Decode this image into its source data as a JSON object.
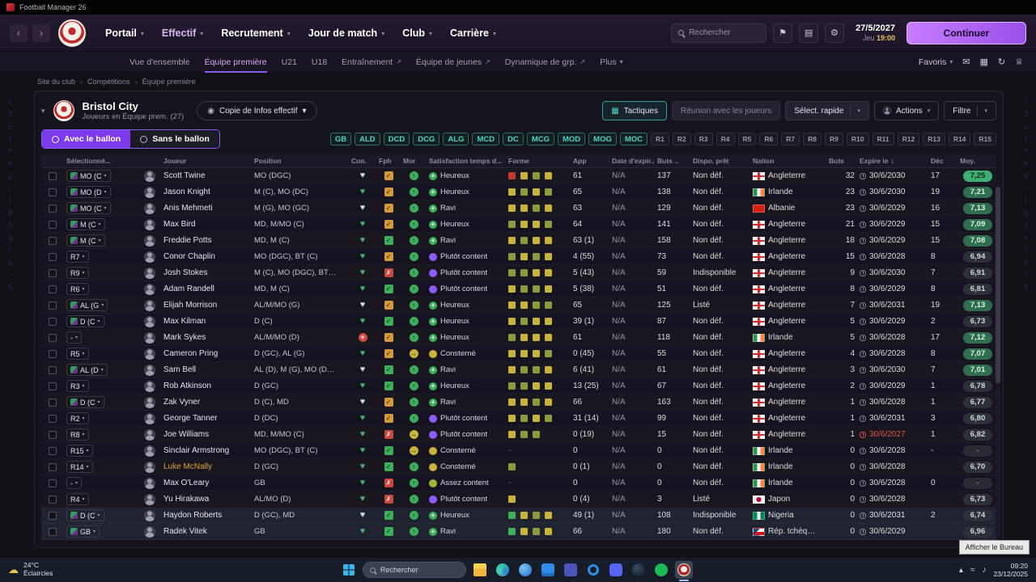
{
  "window": {
    "title": "Football Manager 26"
  },
  "navbar": {
    "menus": [
      "Portail",
      "Effectif",
      "Recrutement",
      "Jour de match",
      "Club",
      "Carrière"
    ],
    "active_menu": "Effectif",
    "search_placeholder": "Rechercher",
    "date": "27/5/2027",
    "day": "Jeu",
    "time": "19:00",
    "continue_label": "Continuer"
  },
  "subnav": {
    "items": [
      {
        "label": "Vue d'ensemble"
      },
      {
        "label": "Équipe première",
        "active": true
      },
      {
        "label": "U21"
      },
      {
        "label": "U18"
      },
      {
        "label": "Entraînement",
        "ext": true
      },
      {
        "label": "Équipe de jeunes",
        "ext": true
      },
      {
        "label": "Dynamique de grp.",
        "ext": true
      },
      {
        "label": "Plus",
        "caret": true
      }
    ],
    "favoris": "Favoris"
  },
  "breadcrumb": [
    "Site du club",
    "Compétitions",
    "Équipe première"
  ],
  "header": {
    "club": "Bristol City",
    "subtitle": "Joueurs en Équipe prem. (27)",
    "view_dropdown": "Copie de Infos effectif",
    "actions": {
      "tactics": "Tactiques",
      "meeting": "Réunion avec les joueurs",
      "quick_select": "Sélect. rapide",
      "actions": "Actions",
      "filter": "Filtre"
    }
  },
  "filters": {
    "ball_on": "Avec le ballon",
    "ball_off": "Sans le ballon",
    "position_chips": [
      "GB",
      "ALD",
      "DCD",
      "DCG",
      "ALG",
      "MCD",
      "DC",
      "MCG",
      "MOD",
      "MOG",
      "MOC"
    ],
    "slot_chips": [
      "R1",
      "R2",
      "R3",
      "R4",
      "R5",
      "R6",
      "R7",
      "R8",
      "R9",
      "R10",
      "R11",
      "R12",
      "R13",
      "R14",
      "R15"
    ]
  },
  "table": {
    "columns": [
      {
        "l": ""
      },
      {
        "l": "Sélectionné..."
      },
      {
        "l": ""
      },
      {
        "l": "Joueur"
      },
      {
        "l": "Position"
      },
      {
        "l": "Con."
      },
      {
        "l": "Fph"
      },
      {
        "l": "Mor"
      },
      {
        "l": "Satisfaction temps d..."
      },
      {
        "l": "Forme"
      },
      {
        "l": "App"
      },
      {
        "l": "Date d'expir..."
      },
      {
        "l": "Buts .."
      },
      {
        "l": "Dispo. prêt"
      },
      {
        "l": "Nation"
      },
      {
        "l": "Buts"
      },
      {
        "l": "Expire le",
        "sort": true
      },
      {
        "l": "Déc"
      },
      {
        "l": "Moy."
      }
    ],
    "rows": [
      {
        "sel": "MO (C",
        "badge": true,
        "name": "Scott Twine",
        "pos": "MO (DGC)",
        "con": "pale",
        "fph": "or",
        "mor": "g",
        "sat": "Heureux",
        "satCls": "sat-green",
        "forme": [
          "r",
          "y",
          "o",
          "y"
        ],
        "app": "61",
        "dexp": "N/A",
        "buts2": "137",
        "dispo": "Non déf.",
        "nation": "Angleterre",
        "flag": "eng",
        "buts": "32",
        "expire": "30/6/2030",
        "dec": "17",
        "moy": "7,25",
        "moyCls": "moy-b3"
      },
      {
        "sel": "MO (D",
        "badge": true,
        "name": "Jason Knight",
        "pos": "M (C), MO (DC)",
        "con": "g",
        "fph": "or",
        "mor": "g",
        "sat": "Heureux",
        "satCls": "sat-green",
        "forme": [
          "y",
          "o",
          "y",
          "o"
        ],
        "app": "65",
        "dexp": "N/A",
        "buts2": "138",
        "dispo": "Non déf.",
        "nation": "Irlande",
        "flag": "irl",
        "buts": "23",
        "expire": "30/6/2030",
        "dec": "19",
        "moy": "7,21",
        "moyCls": "moy-b2"
      },
      {
        "sel": "MO (C",
        "badge": true,
        "name": "Anis Mehmeti",
        "pos": "M (G), MO (GC)",
        "con": "pale",
        "fph": "or",
        "mor": "g",
        "sat": "Ravi",
        "satCls": "sat-green",
        "forme": [
          "y",
          "y",
          "o",
          "y"
        ],
        "app": "63",
        "dexp": "N/A",
        "buts2": "129",
        "dispo": "Non déf.",
        "nation": "Albanie",
        "flag": "alb",
        "buts": "23",
        "expire": "30/6/2029",
        "dec": "16",
        "moy": "7,13",
        "moyCls": "moy-b2"
      },
      {
        "sel": "M (C",
        "badge": true,
        "name": "Max Bird",
        "pos": "MD, M/MO (C)",
        "con": "g",
        "fph": "or",
        "mor": "g",
        "sat": "Heureux",
        "satCls": "sat-green",
        "forme": [
          "o",
          "y",
          "y",
          "o"
        ],
        "app": "64",
        "dexp": "N/A",
        "buts2": "141",
        "dispo": "Non déf.",
        "nation": "Angleterre",
        "flag": "eng",
        "buts": "21",
        "expire": "30/6/2029",
        "dec": "15",
        "moy": "7,09",
        "moyCls": "moy-b2"
      },
      {
        "sel": "M (C",
        "badge": true,
        "name": "Freddie Potts",
        "pos": "MD, M (C)",
        "con": "g",
        "fph": "gr",
        "mor": "g",
        "sat": "Ravi",
        "satCls": "sat-green",
        "forme": [
          "y",
          "o",
          "y",
          "y"
        ],
        "app": "63 (1)",
        "dexp": "N/A",
        "buts2": "158",
        "dispo": "Non déf.",
        "nation": "Angleterre",
        "flag": "eng",
        "buts": "18",
        "expire": "30/6/2029",
        "dec": "15",
        "moy": "7,08",
        "moyCls": "moy-b2"
      },
      {
        "sel": "R7",
        "badge": false,
        "name": "Conor Chaplin",
        "pos": "MO (DGC), BT (C)",
        "con": "g",
        "fph": "or",
        "mor": "g",
        "sat": "Plutôt content",
        "satCls": "sat-purple",
        "forme": [
          "o",
          "y",
          "o",
          "y"
        ],
        "app": "4 (55)",
        "dexp": "N/A",
        "buts2": "73",
        "dispo": "Non déf.",
        "nation": "Angleterre",
        "flag": "eng",
        "buts": "15",
        "expire": "30/6/2028",
        "dec": "8",
        "moy": "6,94",
        "moyCls": "moy-b1"
      },
      {
        "sel": "R9",
        "badge": false,
        "name": "Josh Stokes",
        "pos": "M (C), MO (DGC), BT…",
        "con": "g",
        "fph": "rd",
        "mor": "g",
        "sat": "Plutôt content",
        "satCls": "sat-purple",
        "forme": [
          "o",
          "o",
          "y",
          "y"
        ],
        "app": "5 (43)",
        "dexp": "N/A",
        "buts2": "59",
        "dispo": "Indisponible",
        "nation": "Angleterre",
        "flag": "eng",
        "buts": "9",
        "expire": "30/6/2030",
        "dec": "7",
        "moy": "6,91",
        "moyCls": "moy-b1"
      },
      {
        "sel": "R6",
        "badge": false,
        "name": "Adam Randell",
        "pos": "MD, M (C)",
        "con": "g",
        "fph": "gr",
        "mor": "g",
        "sat": "Plutôt content",
        "satCls": "sat-purple",
        "forme": [
          "y",
          "o",
          "o",
          "y"
        ],
        "app": "5 (38)",
        "dexp": "N/A",
        "buts2": "51",
        "dispo": "Non déf.",
        "nation": "Angleterre",
        "flag": "eng",
        "buts": "8",
        "expire": "30/6/2029",
        "dec": "8",
        "moy": "6,81",
        "moyCls": "moy-b1"
      },
      {
        "sel": "AL (G",
        "badge": true,
        "name": "Elijah Morrison",
        "pos": "AL/M/MO (G)",
        "con": "pale",
        "fph": "or",
        "mor": "g",
        "sat": "Heureux",
        "satCls": "sat-green",
        "forme": [
          "y",
          "y",
          "o",
          "o"
        ],
        "app": "65",
        "dexp": "N/A",
        "buts2": "125",
        "dispo": "Listé",
        "nation": "Angleterre",
        "flag": "eng",
        "buts": "7",
        "expire": "30/6/2031",
        "dec": "19",
        "moy": "7,13",
        "moyCls": "moy-b2"
      },
      {
        "sel": "D (C",
        "badge": true,
        "name": "Max Kilman",
        "pos": "D (C)",
        "con": "g",
        "fph": "gr",
        "mor": "g",
        "sat": "Heureux",
        "satCls": "sat-green",
        "forme": [
          "y",
          "o",
          "y",
          "y"
        ],
        "app": "39 (1)",
        "dexp": "N/A",
        "buts2": "87",
        "dispo": "Non déf.",
        "nation": "Angleterre",
        "flag": "eng",
        "buts": "5",
        "expire": "30/6/2029",
        "dec": "2",
        "moy": "6,73",
        "moyCls": "moy-b1"
      },
      {
        "sel": "-",
        "badge": false,
        "name": "Mark Sykes",
        "pos": "AL/M/MO (D)",
        "con": "inj",
        "fph": "or",
        "mor": "g",
        "sat": "Heureux",
        "satCls": "sat-green",
        "forme": [
          "o",
          "y",
          "y",
          "y"
        ],
        "app": "61",
        "dexp": "N/A",
        "buts2": "118",
        "dispo": "Non déf.",
        "nation": "Irlande",
        "flag": "irl",
        "buts": "5",
        "expire": "30/6/2028",
        "dec": "17",
        "moy": "7,12",
        "moyCls": "moy-b2"
      },
      {
        "sel": "R5",
        "badge": false,
        "name": "Cameron Pring",
        "pos": "D (GC), AL (G)",
        "con": "g",
        "fph": "or",
        "mor": "y",
        "sat": "Consterné",
        "satCls": "sat-yellow",
        "forme": [
          "y",
          "y",
          "y",
          "o"
        ],
        "app": "0 (45)",
        "dexp": "N/A",
        "buts2": "55",
        "dispo": "Non déf.",
        "nation": "Angleterre",
        "flag": "eng",
        "buts": "4",
        "expire": "30/6/2028",
        "dec": "8",
        "moy": "7,07",
        "moyCls": "moy-b2"
      },
      {
        "sel": "AL (D",
        "badge": true,
        "name": "Sam Bell",
        "pos": "AL (D), M (G), MO (D…",
        "con": "pale",
        "fph": "gr",
        "mor": "g",
        "sat": "Ravi",
        "satCls": "sat-green",
        "forme": [
          "y",
          "o",
          "o",
          "y"
        ],
        "app": "6 (41)",
        "dexp": "N/A",
        "buts2": "61",
        "dispo": "Non déf.",
        "nation": "Angleterre",
        "flag": "eng",
        "buts": "3",
        "expire": "30/6/2030",
        "dec": "7",
        "moy": "7,01",
        "moyCls": "moy-b2"
      },
      {
        "sel": "R3",
        "badge": false,
        "name": "Rob Atkinson",
        "pos": "D (GC)",
        "con": "g",
        "fph": "gr",
        "mor": "g",
        "sat": "Heureux",
        "satCls": "sat-green",
        "forme": [
          "o",
          "o",
          "y",
          "y"
        ],
        "app": "13 (25)",
        "dexp": "N/A",
        "buts2": "67",
        "dispo": "Non déf.",
        "nation": "Angleterre",
        "flag": "eng",
        "buts": "2",
        "expire": "30/6/2029",
        "dec": "1",
        "moy": "6,78",
        "moyCls": "moy-b1"
      },
      {
        "sel": "D (C",
        "badge": true,
        "name": "Zak Vyner",
        "pos": "D (C), MD",
        "con": "pale",
        "fph": "or",
        "mor": "g",
        "sat": "Ravi",
        "satCls": "sat-green",
        "forme": [
          "y",
          "y",
          "o",
          "y"
        ],
        "app": "66",
        "dexp": "N/A",
        "buts2": "163",
        "dispo": "Non déf.",
        "nation": "Angleterre",
        "flag": "eng",
        "buts": "1",
        "expire": "30/6/2028",
        "dec": "1",
        "moy": "6,77",
        "moyCls": "moy-b1"
      },
      {
        "sel": "R2",
        "badge": false,
        "name": "George Tanner",
        "pos": "D (DC)",
        "con": "g",
        "fph": "or",
        "mor": "g",
        "sat": "Plutôt content",
        "satCls": "sat-purple",
        "forme": [
          "y",
          "o",
          "y",
          "o"
        ],
        "app": "31 (14)",
        "dexp": "N/A",
        "buts2": "99",
        "dispo": "Non déf.",
        "nation": "Angleterre",
        "flag": "eng",
        "buts": "1",
        "expire": "30/6/2031",
        "dec": "3",
        "moy": "6,80",
        "moyCls": "moy-b1"
      },
      {
        "sel": "R8",
        "badge": false,
        "name": "Joe Williams",
        "pos": "MD, M/MO (C)",
        "con": "g",
        "fph": "rd",
        "mor": "y",
        "sat": "Plutôt content",
        "satCls": "sat-purple",
        "forme": [
          "y",
          "o",
          "o"
        ],
        "app": "0 (19)",
        "dexp": "N/A",
        "buts2": "15",
        "dispo": "Non déf.",
        "nation": "Angleterre",
        "flag": "eng",
        "buts": "1",
        "expire": "30/6/2027",
        "expRed": true,
        "dec": "1",
        "moy": "6,82",
        "moyCls": "moy-b1"
      },
      {
        "sel": "R15",
        "badge": false,
        "name": "Sinclair Armstrong",
        "pos": "MO (DGC), BT (C)",
        "con": "g",
        "fph": "gr",
        "mor": "y",
        "sat": "Consterné",
        "satCls": "sat-yellow",
        "forme": "-",
        "app": "0",
        "dexp": "N/A",
        "buts2": "0",
        "dispo": "Non déf.",
        "nation": "Irlande",
        "flag": "irl",
        "buts": "0",
        "expire": "30/6/2028",
        "dec": "-",
        "moy": "-",
        "moyCls": "moy-dash"
      },
      {
        "sel": "R14",
        "badge": false,
        "name": "Luke McNally",
        "nameCls": "orange",
        "pos": "D (GC)",
        "con": "g",
        "fph": "gr",
        "mor": "g",
        "sat": "Consterné",
        "satCls": "sat-yellow",
        "forme": [
          "o"
        ],
        "app": "0 (1)",
        "dexp": "N/A",
        "buts2": "0",
        "dispo": "Non déf.",
        "nation": "Irlande",
        "flag": "irl",
        "buts": "0",
        "expire": "30/6/2028",
        "dec": "",
        "moy": "6,70",
        "moyCls": "moy-b1"
      },
      {
        "sel": "-",
        "badge": false,
        "name": "Max O'Leary",
        "pos": "GB",
        "con": "g",
        "fph": "rd",
        "mor": "g",
        "sat": "Assez content",
        "satCls": "sat-lime",
        "forme": "-",
        "app": "0",
        "dexp": "N/A",
        "buts2": "0",
        "dispo": "Non déf.",
        "nation": "Irlande",
        "flag": "irl",
        "buts": "0",
        "expire": "30/6/2028",
        "dec": "0",
        "moy": "-",
        "moyCls": "moy-dash"
      },
      {
        "sel": "R4",
        "badge": false,
        "name": "Yu Hirakawa",
        "pos": "AL/MO (D)",
        "con": "g",
        "fph": "rd",
        "mor": "g",
        "sat": "Plutôt content",
        "satCls": "sat-purple",
        "forme": [
          "y"
        ],
        "app": "0 (4)",
        "dexp": "N/A",
        "buts2": "3",
        "dispo": "Listé",
        "nation": "Japon",
        "flag": "jpn",
        "buts": "0",
        "expire": "30/6/2028",
        "dec": "",
        "moy": "6,73",
        "moyCls": "moy-b1"
      },
      {
        "sel": "D (C",
        "badge": true,
        "name": "Haydon Roberts",
        "pos": "D (GC), MD",
        "con": "pale",
        "fph": "gr",
        "mor": "g",
        "sat": "Heureux",
        "satCls": "sat-green",
        "forme": [
          "g",
          "y",
          "o",
          "y"
        ],
        "app": "49 (1)",
        "dexp": "N/A",
        "buts2": "108",
        "dispo": "Indisponible",
        "nation": "Nigeria",
        "flag": "nga",
        "buts": "0",
        "expire": "30/6/2031",
        "dec": "2",
        "moy": "6,74",
        "moyCls": "moy-b1",
        "hl": true
      },
      {
        "sel": "GB",
        "badge": true,
        "name": "Radek Vitek",
        "pos": "GB",
        "con": "g",
        "fph": "gr",
        "mor": "g",
        "sat": "Ravi",
        "satCls": "sat-green",
        "forme": [
          "g",
          "y",
          "o",
          "y"
        ],
        "app": "66",
        "dexp": "N/A",
        "buts2": "180",
        "dispo": "Non déf.",
        "nation": "Rép. tchèq…",
        "flag": "cze",
        "buts": "0",
        "expire": "30/6/2029",
        "dec": "",
        "moy": "6,96",
        "moyCls": "moy-b1",
        "hl": true
      }
    ]
  },
  "taskbar": {
    "weather_temp": "24°C",
    "weather_desc": "Éclaircies",
    "search_placeholder": "Rechercher",
    "apps": [
      {
        "name": "file-explorer",
        "cls": "ic-folder"
      },
      {
        "name": "edge",
        "cls": "ic-edge"
      },
      {
        "name": "onedrive",
        "cls": "ic-cloud"
      },
      {
        "name": "store",
        "cls": "ic-store"
      },
      {
        "name": "teams",
        "cls": "ic-teams"
      },
      {
        "name": "hp",
        "cls": "ic-hp"
      },
      {
        "name": "discord",
        "cls": "ic-discord"
      },
      {
        "name": "steam",
        "cls": "ic-steam"
      },
      {
        "name": "spotify",
        "cls": "ic-spotify"
      },
      {
        "name": "football-manager",
        "cls": "ic-fm",
        "active": true
      }
    ],
    "time": "09:20",
    "date": "23/12/2025",
    "tooltip": "Afficher le Bureau"
  },
  "decor": {
    "left": "{\n7\nc\n(\n*\nx\n2\n;\n)\n#\n0\nq\n[\n8\n~\n%",
    "right": "]\n3\nw\n)\n*\nk\n5\n:\n(\n@\n1\nv\n{\n9\n^\n$"
  }
}
